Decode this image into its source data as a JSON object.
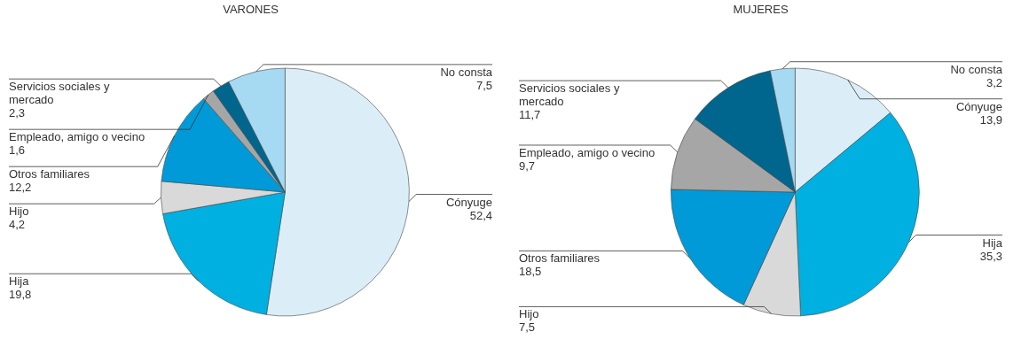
{
  "chart_data": [
    {
      "type": "pie",
      "title": "VARONES",
      "categories": [
        "Cónyuge",
        "Hija",
        "Hijo",
        "Otros familiares",
        "Empleado, amigo o vecino",
        "Servicios sociales y mercado",
        "No consta"
      ],
      "values": [
        52.4,
        19.8,
        4.2,
        12.2,
        1.6,
        2.3,
        7.5
      ],
      "value_labels": [
        "52,4",
        "19,8",
        "4,2",
        "12,2",
        "1,6",
        "2,3",
        "7,5"
      ],
      "colors": [
        "#dbeef8",
        "#00b0e0",
        "#d9d9d9",
        "#009ad8",
        "#a6a6a6",
        "#00668e",
        "#a6daf2"
      ]
    },
    {
      "type": "pie",
      "title": "MUJERES",
      "categories": [
        "Cónyuge",
        "Hija",
        "Hijo",
        "Otros familiares",
        "Empleado, amigo o vecino",
        "Servicios sociales y mercado",
        "No consta"
      ],
      "values": [
        13.9,
        35.3,
        7.5,
        18.5,
        9.7,
        11.7,
        3.2
      ],
      "value_labels": [
        "13,9",
        "35,3",
        "7,5",
        "18,5",
        "9,7",
        "11,7",
        "3,2"
      ],
      "colors": [
        "#dbeef8",
        "#00b0e0",
        "#d9d9d9",
        "#009ad8",
        "#a6a6a6",
        "#00668e",
        "#a6daf2"
      ]
    }
  ]
}
